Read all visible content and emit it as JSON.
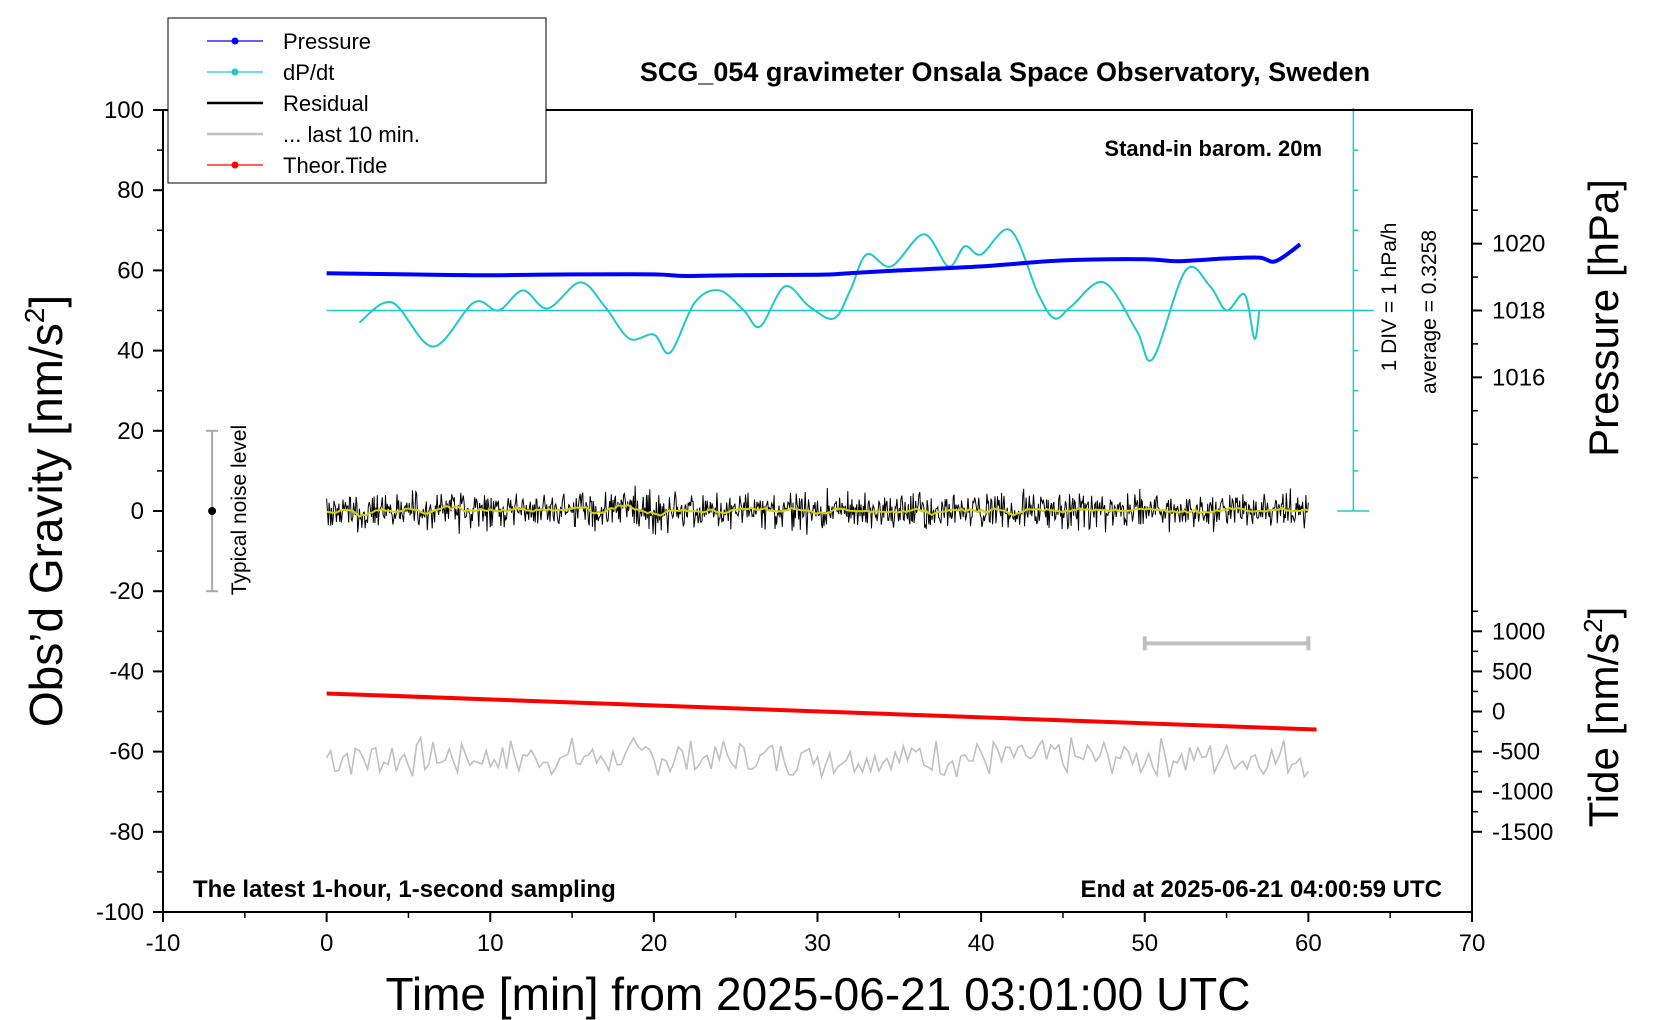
{
  "chart_data": {
    "type": "line",
    "title": "SCG_054 gravimeter Onsala Space Observatory, Sweden",
    "xlabel": "Time [min] from 2025-06-21 03:01:00 UTC",
    "ylabel_left": "Obs’d Gravity [nm/s",
    "ylabel_left_sup": "2",
    "ylabel_left_end": "]",
    "ylabel_right_top": "Pressure [hPa]",
    "ylabel_right_bottom": "Tide [nm/s",
    "ylabel_right_bottom_sup": "2",
    "ylabel_right_bottom_end": "]",
    "xlim": [
      -10,
      70
    ],
    "ylim": [
      -100,
      100
    ],
    "x_ticks": [
      "-10",
      "0",
      "10",
      "20",
      "30",
      "40",
      "50",
      "60",
      "70"
    ],
    "y_ticks": [
      "-100",
      "-80",
      "-60",
      "-40",
      "-20",
      "0",
      "20",
      "40",
      "60",
      "80",
      "100"
    ],
    "pressure_ticks": [
      "1016",
      "1018",
      "1020"
    ],
    "tide_ticks": [
      "-1500",
      "-1000",
      "-500",
      "0",
      "500",
      "1000"
    ],
    "pressure_axis": {
      "hpa_at_gravity_0": 1012,
      "hpa_at_gravity_100": 1024
    },
    "tide_axis": {
      "nm_s2_at_gravity_0": 2500,
      "nm_s2_per_gravity_unit": 50
    },
    "legend": {
      "placement": "top-left",
      "items": [
        {
          "label": "Pressure",
          "color": "#0000ff",
          "style": "line-dot"
        },
        {
          "label": "dP/dt",
          "color": "#20c8c8",
          "style": "line-dot"
        },
        {
          "label": "Residual",
          "color": "#000000",
          "style": "line"
        },
        {
          "label": "... last 10 min.",
          "color": "#c0c0c0",
          "style": "line"
        },
        {
          "label": "Theor.Tide",
          "color": "#ff0000",
          "style": "line-dot"
        }
      ]
    },
    "annotations": {
      "top_right": "Stand-in barom. 20m",
      "bottom_left": "The latest 1-hour, 1-second sampling",
      "bottom_right": "End at 2025-06-21 04:00:59 UTC",
      "div_label": "1 DIV = 1 hPa/h",
      "average_label": "average = 0.3258",
      "noise_label": "Typical noise level"
    },
    "noise_bar": {
      "x": -7,
      "center": 0,
      "half_range": 20
    },
    "last10_bar": {
      "x_start": 50,
      "x_end": 60,
      "y": -33
    },
    "dpdt_baseline": {
      "y": 50,
      "x_start": 0,
      "x_end": 64
    },
    "series": [
      {
        "name": "Pressure",
        "color": "#0000ff",
        "x": [
          0,
          5,
          10,
          15,
          20,
          22,
          25,
          30,
          32,
          35,
          40,
          45,
          50,
          52,
          55,
          57,
          58,
          59.5
        ],
        "y": [
          59.3,
          59.0,
          58.8,
          59.0,
          59.0,
          58.6,
          58.8,
          58.9,
          59.3,
          60.0,
          61.0,
          62.5,
          62.8,
          62.3,
          63.0,
          63.2,
          62.3,
          66.5
        ]
      },
      {
        "name": "dP/dt",
        "color": "#20c8c8",
        "x": [
          2,
          4,
          6.5,
          9,
          10.5,
          12,
          13.5,
          15.5,
          17,
          18.5,
          20,
          21,
          22.5,
          24,
          25.5,
          26.5,
          28,
          29.5,
          31,
          32,
          33,
          34.5,
          36.5,
          38,
          39,
          40,
          41.8,
          43.5,
          44.5,
          45.5,
          47.5,
          49.5,
          50.5,
          52.5,
          54,
          55,
          56.1,
          56.7,
          57
        ],
        "y": [
          47,
          52,
          41,
          52,
          50,
          55,
          50.5,
          57,
          51,
          43,
          44,
          39.5,
          52,
          55,
          50,
          46,
          56,
          51,
          48,
          55,
          64,
          61,
          69,
          61,
          66,
          64,
          70,
          54,
          48,
          51,
          57,
          45,
          38,
          60,
          56,
          50,
          54,
          43,
          50
        ]
      },
      {
        "name": "Residual",
        "color": "#000000",
        "x_start": 0,
        "x_end": 60,
        "mean": 0,
        "amplitude": 5
      },
      {
        "name": "... last 10 min.",
        "color": "#c0c0c0",
        "x_start": 0,
        "x_end": 60,
        "mean": -61.5,
        "amplitude": 4
      },
      {
        "name": "Theor.Tide",
        "color": "#ff0000",
        "x": [
          0,
          60.5
        ],
        "y": [
          -45.5,
          -54.5
        ]
      }
    ]
  }
}
